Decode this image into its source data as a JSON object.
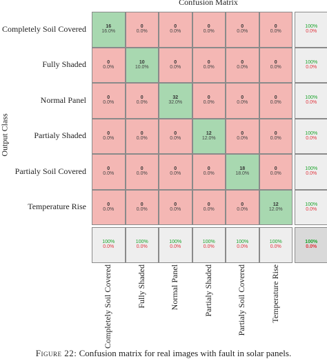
{
  "colors": {
    "diagonal": "#a8d8b0",
    "off_diagonal": "#f4b7b4",
    "summary": "#eeeeee",
    "total": "#d9d9d9",
    "summary_correct": "#1aa32a",
    "summary_error": "#e0303a"
  },
  "chart_data": {
    "type": "heatmap",
    "title": "Confusion Matrix",
    "ylabel": "Output Class",
    "xlabel": "",
    "row_labels": [
      "Completely Soil Covered",
      "Fully Shaded",
      "Normal Panel",
      "Partialy Shaded",
      "Partialy Soil Covered",
      "Temperature Rise"
    ],
    "col_labels": [
      "Completely Soil Covered",
      "Fully Shaded",
      "Normal Panel",
      "Partialy Shaded",
      "Partialy Soil Covered",
      "Temperature Rise"
    ],
    "counts": [
      [
        16,
        0,
        0,
        0,
        0,
        0
      ],
      [
        0,
        10,
        0,
        0,
        0,
        0
      ],
      [
        0,
        0,
        32,
        0,
        0,
        0
      ],
      [
        0,
        0,
        0,
        12,
        0,
        0
      ],
      [
        0,
        0,
        0,
        0,
        18,
        0
      ],
      [
        0,
        0,
        0,
        0,
        0,
        12
      ]
    ],
    "percents": [
      [
        "16.0%",
        "0.0%",
        "0.0%",
        "0.0%",
        "0.0%",
        "0.0%"
      ],
      [
        "0.0%",
        "10.0%",
        "0.0%",
        "0.0%",
        "0.0%",
        "0.0%"
      ],
      [
        "0.0%",
        "0.0%",
        "32.0%",
        "0.0%",
        "0.0%",
        "0.0%"
      ],
      [
        "0.0%",
        "0.0%",
        "0.0%",
        "12.0%",
        "0.0%",
        "0.0%"
      ],
      [
        "0.0%",
        "0.0%",
        "0.0%",
        "0.0%",
        "18.0%",
        "0.0%"
      ],
      [
        "0.0%",
        "0.0%",
        "0.0%",
        "0.0%",
        "0.0%",
        "12.0%"
      ]
    ],
    "row_summary": [
      {
        "correct": "100%",
        "error": "0.0%"
      },
      {
        "correct": "100%",
        "error": "0.0%"
      },
      {
        "correct": "100%",
        "error": "0.0%"
      },
      {
        "correct": "100%",
        "error": "0.0%"
      },
      {
        "correct": "100%",
        "error": "0.0%"
      },
      {
        "correct": "100%",
        "error": "0.0%"
      }
    ],
    "col_summary": [
      {
        "correct": "100%",
        "error": "0.0%"
      },
      {
        "correct": "100%",
        "error": "0.0%"
      },
      {
        "correct": "100%",
        "error": "0.0%"
      },
      {
        "correct": "100%",
        "error": "0.0%"
      },
      {
        "correct": "100%",
        "error": "0.0%"
      },
      {
        "correct": "100%",
        "error": "0.0%"
      }
    ],
    "total": {
      "correct": "100%",
      "error": "0.0%"
    }
  },
  "caption": {
    "label": "Figure 22:",
    "text": "Confusion matrix for real images with fault in solar panels."
  }
}
